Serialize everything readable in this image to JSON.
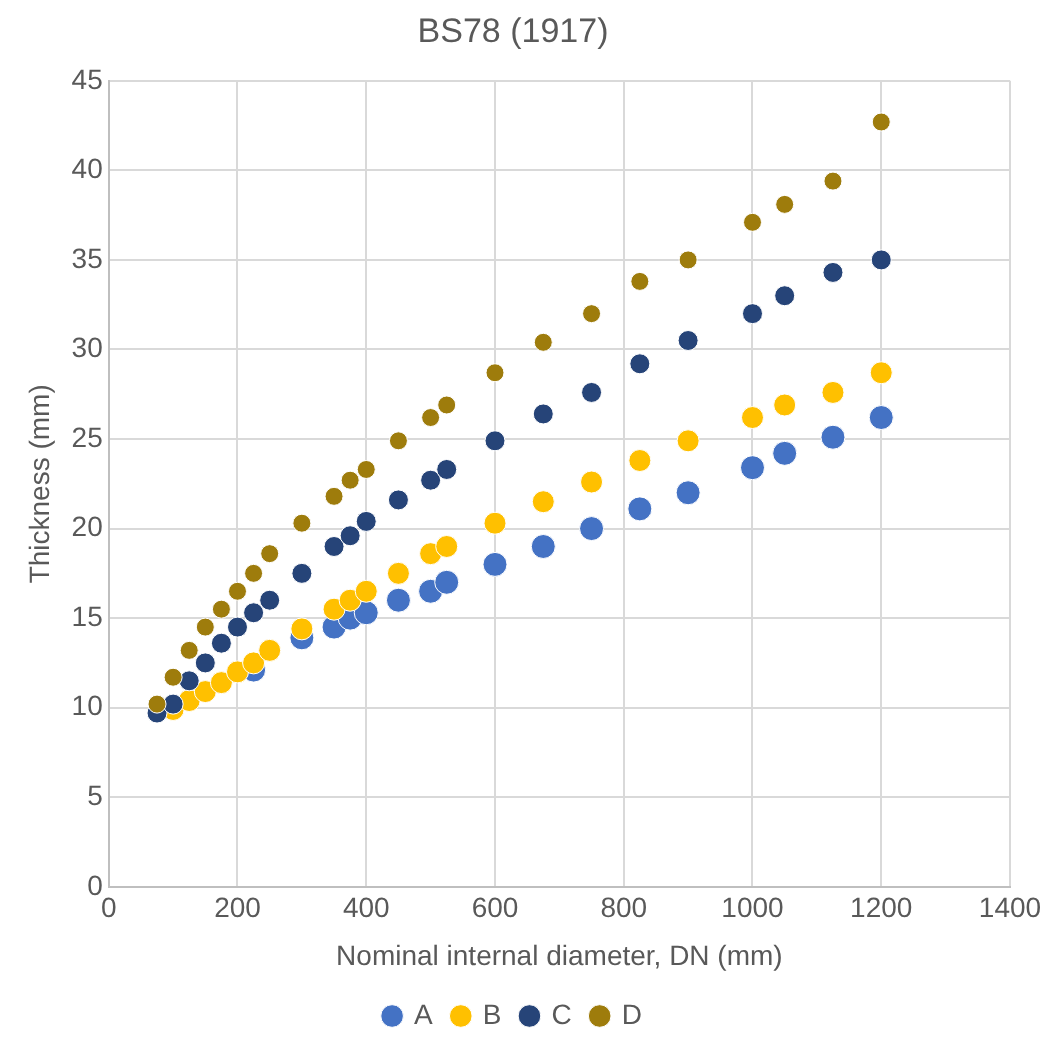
{
  "chart_data": {
    "type": "scatter",
    "title": "BS78 (1917)",
    "xlabel": "Nominal internal diameter, DN (mm)",
    "ylabel": "Thickness (mm)",
    "x": [
      75,
      100,
      125,
      150,
      175,
      200,
      225,
      250,
      300,
      350,
      375,
      400,
      450,
      500,
      525,
      600,
      675,
      750,
      825,
      900,
      1000,
      1050,
      1125,
      1200
    ],
    "series": [
      {
        "name": "A",
        "color": "#4472c4",
        "values": [
          null,
          null,
          null,
          null,
          null,
          null,
          12.1,
          null,
          13.9,
          14.5,
          15.0,
          15.3,
          16.0,
          16.5,
          17.0,
          18.0,
          19.0,
          20.0,
          21.1,
          22.0,
          23.4,
          24.2,
          25.1,
          26.2
        ]
      },
      {
        "name": "B",
        "color": "#ffc000",
        "values": [
          null,
          9.9,
          10.4,
          10.9,
          11.4,
          12.0,
          12.5,
          13.2,
          14.4,
          15.5,
          16.0,
          16.5,
          17.5,
          18.6,
          19.0,
          20.3,
          21.5,
          22.6,
          23.8,
          24.9,
          26.2,
          26.9,
          27.6,
          28.7
        ]
      },
      {
        "name": "C",
        "color": "#264478",
        "values": [
          9.7,
          10.2,
          11.5,
          12.5,
          13.6,
          14.5,
          15.3,
          16.0,
          17.5,
          19.0,
          19.6,
          20.4,
          21.6,
          22.7,
          23.3,
          24.9,
          26.4,
          27.6,
          29.2,
          30.5,
          32.0,
          33.0,
          34.3,
          35.0
        ]
      },
      {
        "name": "D",
        "color": "#9e7c0c",
        "values": [
          10.2,
          11.7,
          13.2,
          14.5,
          15.5,
          16.5,
          17.5,
          18.6,
          20.3,
          21.8,
          22.7,
          23.3,
          24.9,
          26.2,
          26.9,
          28.7,
          30.4,
          32.0,
          33.8,
          35.0,
          37.1,
          38.1,
          39.4,
          42.7
        ]
      }
    ],
    "xlim": [
      0,
      1400
    ],
    "xticks": [
      0,
      200,
      400,
      600,
      800,
      1000,
      1200,
      1400
    ],
    "ylim": [
      0,
      45
    ],
    "yticks": [
      0,
      5,
      10,
      15,
      20,
      25,
      30,
      35,
      40,
      45
    ],
    "grid": true,
    "legend": "bottom",
    "marker": "circle"
  }
}
